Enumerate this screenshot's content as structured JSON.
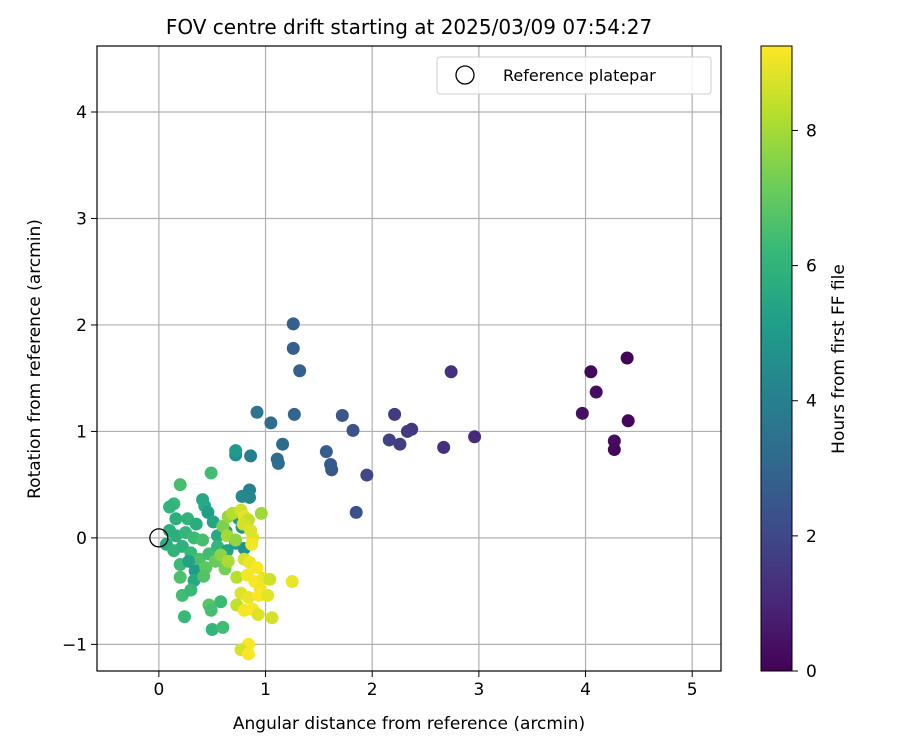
{
  "chart_data": {
    "type": "scatter",
    "title": "FOV centre drift starting at 2025/03/09 07:54:27",
    "xlabel": "Angular distance from reference (arcmin)",
    "ylabel": "Rotation from reference (arcmin)",
    "xlim": [
      -0.58,
      5.27
    ],
    "ylim": [
      -1.25,
      4.62
    ],
    "xticks": [
      0,
      1,
      2,
      3,
      4,
      5
    ],
    "yticks": [
      -1,
      0,
      1,
      2,
      3,
      4
    ],
    "grid": true,
    "legend": {
      "placement": "top-right",
      "entries": [
        "Reference platepar"
      ]
    },
    "reference_point": {
      "x": 0,
      "y": 0,
      "label": "Reference platepar"
    },
    "colorbar": {
      "label": "Hours from first FF file",
      "min": 0,
      "max": 9.25,
      "ticks": [
        0,
        2,
        4,
        6,
        8
      ],
      "colormap": "viridis"
    },
    "points": [
      {
        "x": 4.39,
        "y": 1.69,
        "t": 0.1
      },
      {
        "x": 4.05,
        "y": 1.56,
        "t": 0.2
      },
      {
        "x": 4.1,
        "y": 1.37,
        "t": 0.3
      },
      {
        "x": 4.4,
        "y": 1.1,
        "t": 0.15
      },
      {
        "x": 3.97,
        "y": 1.17,
        "t": 0.4
      },
      {
        "x": 4.27,
        "y": 0.91,
        "t": 0.3
      },
      {
        "x": 4.27,
        "y": 0.83,
        "t": 0.2
      },
      {
        "x": 2.74,
        "y": 1.56,
        "t": 1.3
      },
      {
        "x": 2.96,
        "y": 0.95,
        "t": 1.1
      },
      {
        "x": 2.67,
        "y": 0.85,
        "t": 1.3
      },
      {
        "x": 2.37,
        "y": 1.02,
        "t": 1.5
      },
      {
        "x": 2.33,
        "y": 1.0,
        "t": 1.6
      },
      {
        "x": 2.21,
        "y": 1.16,
        "t": 1.6
      },
      {
        "x": 2.26,
        "y": 0.88,
        "t": 1.7
      },
      {
        "x": 2.16,
        "y": 0.92,
        "t": 1.8
      },
      {
        "x": 1.95,
        "y": 0.59,
        "t": 2.0
      },
      {
        "x": 1.85,
        "y": 0.24,
        "t": 2.3
      },
      {
        "x": 1.82,
        "y": 1.01,
        "t": 2.4
      },
      {
        "x": 1.72,
        "y": 1.15,
        "t": 2.5
      },
      {
        "x": 1.62,
        "y": 0.64,
        "t": 2.5
      },
      {
        "x": 1.61,
        "y": 0.69,
        "t": 2.6
      },
      {
        "x": 1.57,
        "y": 0.81,
        "t": 2.7
      },
      {
        "x": 1.26,
        "y": 2.01,
        "t": 2.8
      },
      {
        "x": 1.26,
        "y": 1.78,
        "t": 2.8
      },
      {
        "x": 1.32,
        "y": 1.57,
        "t": 2.9
      },
      {
        "x": 1.27,
        "y": 1.16,
        "t": 3.0
      },
      {
        "x": 1.16,
        "y": 0.88,
        "t": 3.2
      },
      {
        "x": 1.11,
        "y": 0.74,
        "t": 3.3
      },
      {
        "x": 1.12,
        "y": 0.7,
        "t": 3.3
      },
      {
        "x": 1.05,
        "y": 1.08,
        "t": 3.3
      },
      {
        "x": 0.92,
        "y": 1.18,
        "t": 3.6
      },
      {
        "x": 0.86,
        "y": 0.77,
        "t": 4.0
      },
      {
        "x": 0.85,
        "y": 0.45,
        "t": 4.1
      },
      {
        "x": 0.85,
        "y": 0.38,
        "t": 4.3
      },
      {
        "x": 0.78,
        "y": 0.39,
        "t": 4.4
      },
      {
        "x": 0.72,
        "y": 0.78,
        "t": 4.6
      },
      {
        "x": 0.72,
        "y": 0.82,
        "t": 5.0
      },
      {
        "x": 0.49,
        "y": 0.61,
        "t": 6.4
      },
      {
        "x": 0.2,
        "y": 0.5,
        "t": 6.5
      },
      {
        "x": 0.41,
        "y": 0.36,
        "t": 5.5
      },
      {
        "x": 0.14,
        "y": 0.32,
        "t": 6.2
      },
      {
        "x": 0.1,
        "y": 0.29,
        "t": 6.0
      },
      {
        "x": 0.43,
        "y": 0.3,
        "t": 5.6
      },
      {
        "x": 0.46,
        "y": 0.24,
        "t": 5.2
      },
      {
        "x": 0.27,
        "y": 0.18,
        "t": 6.0
      },
      {
        "x": 0.16,
        "y": 0.18,
        "t": 5.8
      },
      {
        "x": 0.35,
        "y": 0.13,
        "t": 5.7
      },
      {
        "x": 0.51,
        "y": 0.15,
        "t": 5.4
      },
      {
        "x": 0.75,
        "y": 0.18,
        "t": 4.9
      },
      {
        "x": 0.78,
        "y": 0.1,
        "t": 4.8
      },
      {
        "x": 0.1,
        "y": 0.07,
        "t": 5.9
      },
      {
        "x": 0.16,
        "y": 0.02,
        "t": 5.8
      },
      {
        "x": 0.25,
        "y": 0.05,
        "t": 6.1
      },
      {
        "x": 0.33,
        "y": 0.0,
        "t": 6.3
      },
      {
        "x": 0.41,
        "y": -0.02,
        "t": 6.5
      },
      {
        "x": 0.55,
        "y": 0.02,
        "t": 5.5
      },
      {
        "x": 0.63,
        "y": 0.06,
        "t": 5.2
      },
      {
        "x": 0.07,
        "y": -0.06,
        "t": 5.7
      },
      {
        "x": 0.14,
        "y": -0.12,
        "t": 6.0
      },
      {
        "x": 0.22,
        "y": -0.08,
        "t": 5.9
      },
      {
        "x": 0.3,
        "y": -0.14,
        "t": 6.2
      },
      {
        "x": 0.38,
        "y": -0.2,
        "t": 6.6
      },
      {
        "x": 0.47,
        "y": -0.15,
        "t": 6.4
      },
      {
        "x": 0.55,
        "y": -0.08,
        "t": 6.1
      },
      {
        "x": 0.64,
        "y": -0.12,
        "t": 5.4
      },
      {
        "x": 0.72,
        "y": -0.05,
        "t": 5.0
      },
      {
        "x": 0.8,
        "y": -0.1,
        "t": 4.7
      },
      {
        "x": 0.2,
        "y": -0.25,
        "t": 6.3
      },
      {
        "x": 0.28,
        "y": -0.22,
        "t": 5.3
      },
      {
        "x": 0.34,
        "y": -0.31,
        "t": 5.1
      },
      {
        "x": 0.44,
        "y": -0.28,
        "t": 6.9
      },
      {
        "x": 0.53,
        "y": -0.22,
        "t": 7.1
      },
      {
        "x": 0.62,
        "y": -0.29,
        "t": 7.3
      },
      {
        "x": 0.2,
        "y": -0.37,
        "t": 6.6
      },
      {
        "x": 0.33,
        "y": -0.4,
        "t": 5.6
      },
      {
        "x": 0.42,
        "y": -0.36,
        "t": 6.7
      },
      {
        "x": 0.22,
        "y": -0.54,
        "t": 6.4
      },
      {
        "x": 0.3,
        "y": -0.49,
        "t": 6.2
      },
      {
        "x": 0.47,
        "y": -0.63,
        "t": 6.8
      },
      {
        "x": 0.49,
        "y": -0.68,
        "t": 6.5
      },
      {
        "x": 0.58,
        "y": -0.6,
        "t": 6.3
      },
      {
        "x": 0.24,
        "y": -0.74,
        "t": 6.2
      },
      {
        "x": 0.5,
        "y": -0.86,
        "t": 6.1
      },
      {
        "x": 0.6,
        "y": -0.84,
        "t": 6.4
      },
      {
        "x": 0.6,
        "y": 0.11,
        "t": 7.4
      },
      {
        "x": 0.65,
        "y": 0.2,
        "t": 7.8
      },
      {
        "x": 0.69,
        "y": 0.23,
        "t": 8.2
      },
      {
        "x": 0.77,
        "y": 0.26,
        "t": 8.6
      },
      {
        "x": 0.8,
        "y": 0.2,
        "t": 8.9
      },
      {
        "x": 0.84,
        "y": 0.17,
        "t": 8.4
      },
      {
        "x": 0.96,
        "y": 0.23,
        "t": 7.9
      },
      {
        "x": 0.88,
        "y": 0.0,
        "t": 8.9
      },
      {
        "x": 0.87,
        "y": -0.06,
        "t": 9.1
      },
      {
        "x": 0.79,
        "y": 0.13,
        "t": 8.7
      },
      {
        "x": 0.86,
        "y": 0.07,
        "t": 8.8
      },
      {
        "x": 0.64,
        "y": 0.02,
        "t": 8.0
      },
      {
        "x": 0.72,
        "y": -0.02,
        "t": 7.7
      },
      {
        "x": 0.58,
        "y": -0.16,
        "t": 7.6
      },
      {
        "x": 0.65,
        "y": -0.22,
        "t": 8.1
      },
      {
        "x": 0.8,
        "y": -0.2,
        "t": 8.7
      },
      {
        "x": 0.85,
        "y": -0.23,
        "t": 9.0
      },
      {
        "x": 0.92,
        "y": -0.28,
        "t": 9.2
      },
      {
        "x": 0.73,
        "y": -0.37,
        "t": 8.3
      },
      {
        "x": 0.83,
        "y": -0.35,
        "t": 9.1
      },
      {
        "x": 0.9,
        "y": -0.41,
        "t": 9.2
      },
      {
        "x": 0.98,
        "y": -0.38,
        "t": 9.0
      },
      {
        "x": 0.95,
        "y": -0.47,
        "t": 9.1
      },
      {
        "x": 1.04,
        "y": -0.39,
        "t": 8.6
      },
      {
        "x": 0.77,
        "y": -0.52,
        "t": 8.8
      },
      {
        "x": 0.84,
        "y": -0.56,
        "t": 9.0
      },
      {
        "x": 0.94,
        "y": -0.54,
        "t": 9.2
      },
      {
        "x": 1.02,
        "y": -0.54,
        "t": 8.9
      },
      {
        "x": 0.73,
        "y": -0.63,
        "t": 8.4
      },
      {
        "x": 0.8,
        "y": -0.68,
        "t": 9.1
      },
      {
        "x": 0.88,
        "y": -0.67,
        "t": 9.2
      },
      {
        "x": 0.93,
        "y": -0.72,
        "t": 8.8
      },
      {
        "x": 1.06,
        "y": -0.75,
        "t": 8.7
      },
      {
        "x": 1.25,
        "y": -0.41,
        "t": 9.0
      },
      {
        "x": 0.84,
        "y": -1.0,
        "t": 9.2
      },
      {
        "x": 0.77,
        "y": -1.05,
        "t": 8.7
      },
      {
        "x": 0.84,
        "y": -1.09,
        "t": 9.2
      }
    ]
  }
}
